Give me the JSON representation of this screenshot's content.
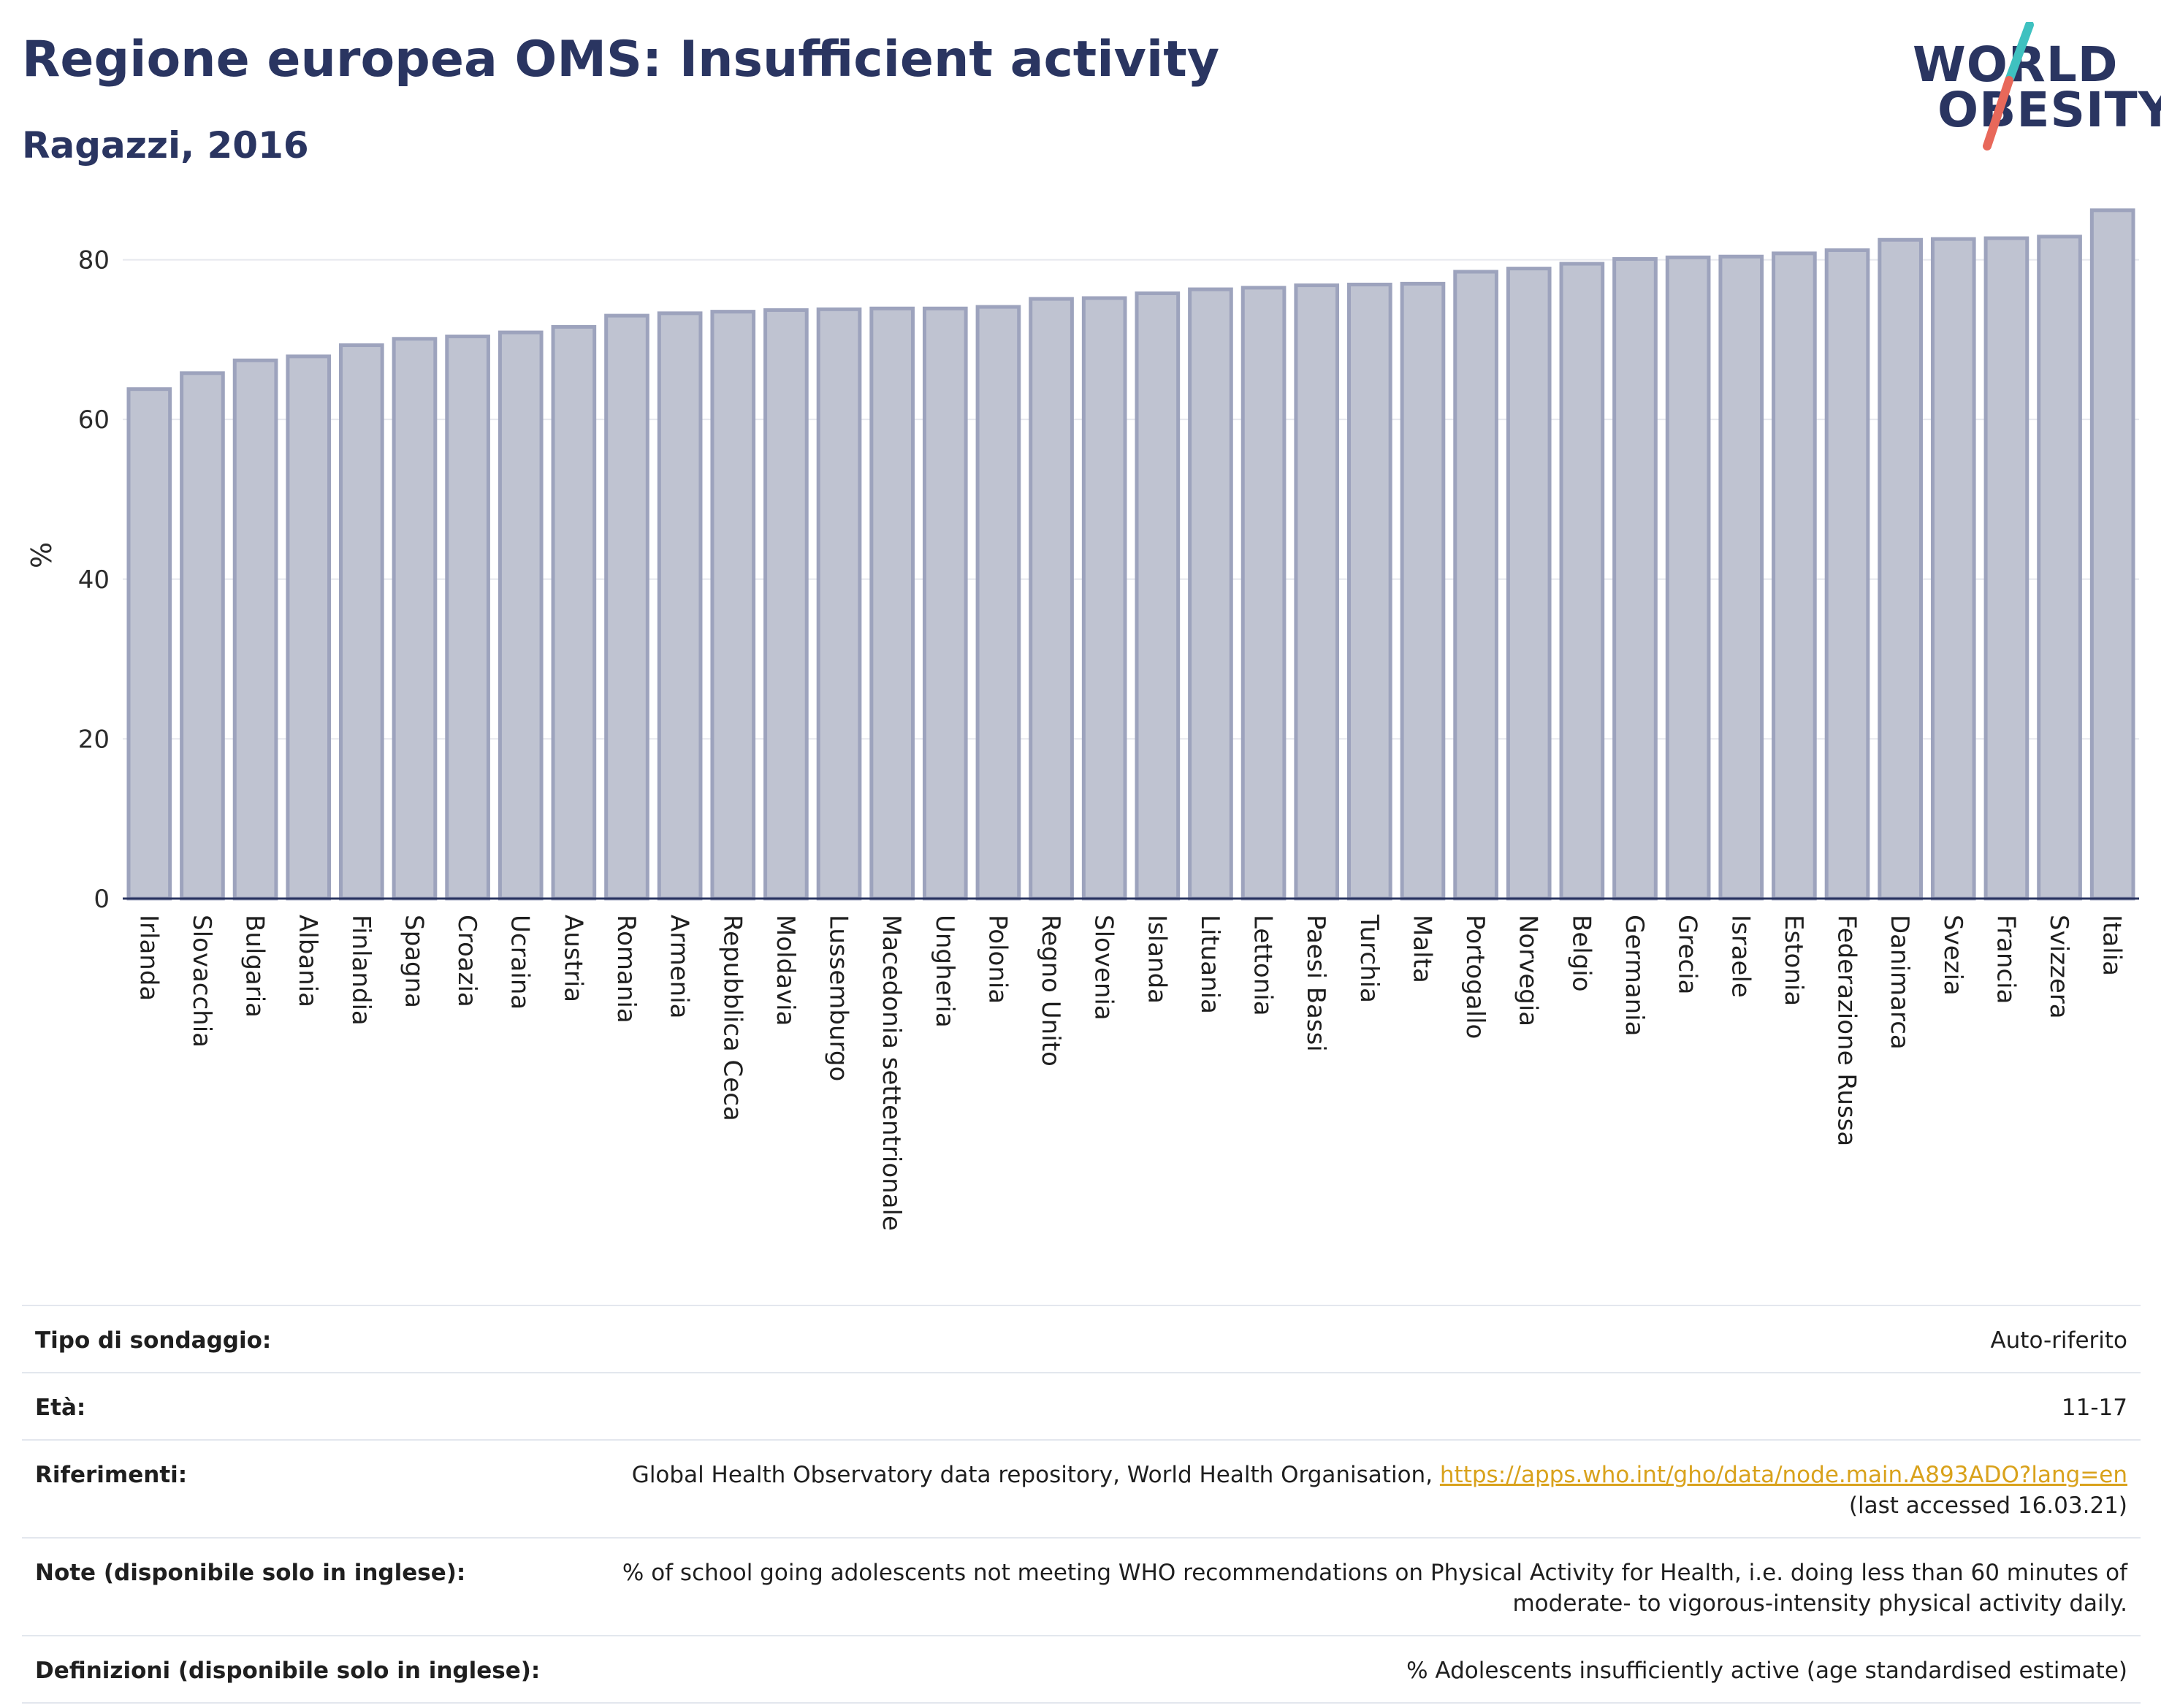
{
  "header": {
    "title": "Regione europea OMS: Insufficient activity",
    "subtitle": "Ragazzi, 2016"
  },
  "logo": {
    "line1": "WORLD",
    "line2": "OBESITY",
    "slash_colors": [
      "#3fc1c0",
      "#e8685a"
    ]
  },
  "chart_data": {
    "type": "bar",
    "title": "",
    "xlabel": "",
    "ylabel": "%",
    "ylim": [
      0,
      86
    ],
    "yticks": [
      0,
      20,
      40,
      60,
      80
    ],
    "grid": true,
    "bar_fill": "#bfc3d1",
    "bar_stroke": "#9da3bd",
    "categories": [
      "Irlanda",
      "Slovacchia",
      "Bulgaria",
      "Albania",
      "Finlandia",
      "Spagna",
      "Croazia",
      "Ucraina",
      "Austria",
      "Romania",
      "Armenia",
      "Repubblica Ceca",
      "Moldavia",
      "Lussemburgo",
      "Macedonia settentrionale",
      "Ungheria",
      "Polonia",
      "Regno Unito",
      "Slovenia",
      "Islanda",
      "Lituania",
      "Lettonia",
      "Paesi Bassi",
      "Turchia",
      "Malta",
      "Portogallo",
      "Norvegia",
      "Belgio",
      "Germania",
      "Grecia",
      "Israele",
      "Estonia",
      "Federazione Russa",
      "Danimarca",
      "Svezia",
      "Francia",
      "Svizzera",
      "Italia"
    ],
    "values": [
      63.8,
      65.8,
      67.4,
      67.9,
      69.3,
      70.1,
      70.4,
      70.9,
      71.6,
      73.0,
      73.3,
      73.5,
      73.7,
      73.8,
      73.9,
      73.9,
      74.1,
      75.1,
      75.2,
      75.8,
      76.3,
      76.5,
      76.8,
      76.9,
      77.0,
      78.5,
      78.9,
      79.5,
      80.1,
      80.3,
      80.4,
      80.8,
      81.2,
      82.5,
      82.6,
      82.7,
      82.9,
      86.2
    ]
  },
  "info": {
    "rows": [
      {
        "label": "Tipo di sondaggio:",
        "value": "Auto-riferito"
      },
      {
        "label": "Età:",
        "value": "11-17"
      },
      {
        "label": "Riferimenti:",
        "value": "Global Health Observatory data repository, World Health Organisation, ",
        "link": "https://apps.who.int/gho/data/node.main.A893ADO?lang=en",
        "value_after": "(last accessed 16.03.21)"
      },
      {
        "label": "Note (disponibile solo in inglese):",
        "value": "% of school going adolescents not meeting WHO recommendations on Physical Activity for Health, i.e. doing less than 60 minutes of moderate- to vigorous-intensity physical activity daily."
      },
      {
        "label": "Definizioni (disponibile solo in inglese):",
        "value": "% Adolescents insufficiently active (age standardised estimate)"
      }
    ]
  }
}
